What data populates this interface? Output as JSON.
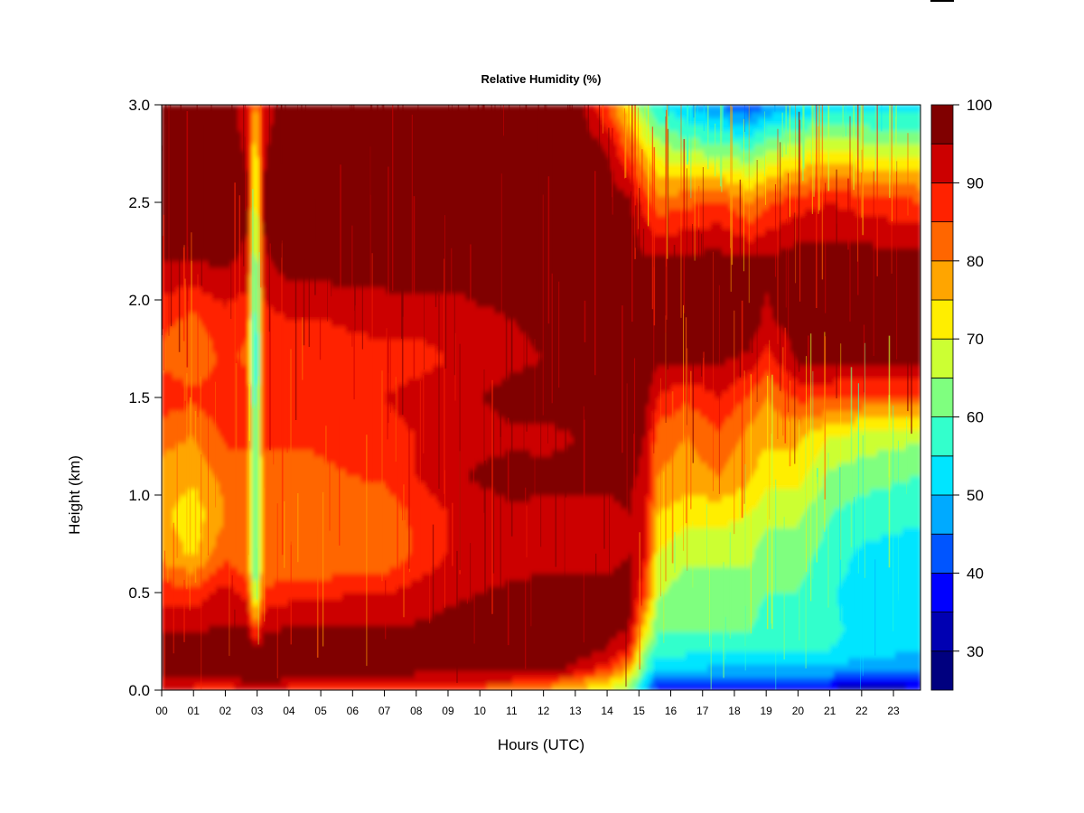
{
  "chart_data": {
    "type": "heatmap",
    "title": "Relative Humidity (%)",
    "xlabel": "Hours (UTC)",
    "ylabel": "Height (km)",
    "x_tick_labels": [
      "00",
      "01",
      "02",
      "03",
      "04",
      "05",
      "06",
      "07",
      "08",
      "09",
      "10",
      "11",
      "12",
      "13",
      "14",
      "15",
      "16",
      "17",
      "18",
      "19",
      "20",
      "21",
      "22",
      "23"
    ],
    "y_tick_labels": [
      "0.0",
      "0.5",
      "1.0",
      "1.5",
      "2.0",
      "2.5",
      "3.0"
    ],
    "xlim": [
      0,
      23.85
    ],
    "ylim": [
      0,
      3.0
    ],
    "x_unit": "hours UTC",
    "y_unit": "km",
    "colorbar": {
      "label_ticks": [
        "30",
        "40",
        "50",
        "60",
        "70",
        "80",
        "90",
        "100"
      ],
      "tick_values": [
        30,
        40,
        50,
        60,
        70,
        80,
        90,
        100
      ],
      "range": [
        25,
        100
      ],
      "bin_width": 5,
      "colors": [
        "#00007f",
        "#0000b2",
        "#0000ff",
        "#0055ff",
        "#00aaff",
        "#00e5ff",
        "#33ffcc",
        "#7fff7f",
        "#ccff33",
        "#ffee00",
        "#ffa500",
        "#ff6600",
        "#ff2200",
        "#cc0000",
        "#800000"
      ]
    },
    "heights_km": [
      0.0,
      0.05,
      0.1,
      0.2,
      0.3,
      0.5,
      0.7,
      0.9,
      1.1,
      1.3,
      1.5,
      1.7,
      1.9,
      2.2,
      2.5,
      2.8,
      3.0
    ],
    "grid": [
      {
        "x": 0.0,
        "rh": [
          90,
          94,
          96,
          96,
          95,
          88,
          78,
          76,
          78,
          82,
          88,
          84,
          86,
          95,
          98,
          98,
          98
        ]
      },
      {
        "x": 1.0,
        "rh": [
          88,
          94,
          96,
          96,
          95,
          87,
          74,
          72,
          76,
          80,
          86,
          82,
          84,
          95,
          98,
          98,
          98
        ]
      },
      {
        "x": 2.0,
        "rh": [
          86,
          93,
          96,
          97,
          96,
          92,
          84,
          80,
          82,
          86,
          88,
          86,
          88,
          96,
          98,
          98,
          98
        ]
      },
      {
        "x": 2.7,
        "rh": [
          90,
          96,
          98,
          98,
          96,
          88,
          80,
          80,
          82,
          86,
          88,
          84,
          86,
          94,
          96,
          94,
          92
        ]
      },
      {
        "x": 2.95,
        "rh": [
          92,
          98,
          98,
          98,
          85,
          62,
          55,
          55,
          55,
          55,
          52,
          50,
          52,
          56,
          64,
          70,
          78
        ]
      },
      {
        "x": 3.2,
        "rh": [
          92,
          98,
          98,
          98,
          95,
          86,
          80,
          80,
          82,
          86,
          88,
          86,
          88,
          94,
          96,
          94,
          92
        ]
      },
      {
        "x": 4.0,
        "rh": [
          88,
          94,
          96,
          97,
          96,
          88,
          80,
          80,
          82,
          86,
          88,
          86,
          90,
          98,
          99,
          99,
          99
        ]
      },
      {
        "x": 5.0,
        "rh": [
          86,
          94,
          96,
          97,
          96,
          88,
          80,
          82,
          84,
          86,
          88,
          86,
          90,
          98,
          99,
          99,
          99
        ]
      },
      {
        "x": 6.0,
        "rh": [
          85,
          94,
          96,
          97,
          96,
          90,
          80,
          82,
          85,
          88,
          90,
          88,
          91,
          98,
          99,
          99,
          99
        ]
      },
      {
        "x": 7.0,
        "rh": [
          85,
          94,
          96,
          97,
          96,
          90,
          80,
          82,
          86,
          88,
          90,
          88,
          92,
          98,
          99,
          99,
          99
        ]
      },
      {
        "x": 8.0,
        "rh": [
          85,
          93,
          96,
          97,
          96,
          92,
          86,
          86,
          90,
          90,
          92,
          88,
          92,
          98,
          99,
          99,
          99
        ]
      },
      {
        "x": 9.0,
        "rh": [
          84,
          92,
          96,
          97,
          97,
          94,
          90,
          90,
          94,
          92,
          94,
          90,
          92,
          98,
          99,
          99,
          99
        ]
      },
      {
        "x": 10.0,
        "rh": [
          82,
          92,
          96,
          97,
          97,
          95,
          92,
          92,
          96,
          93,
          95,
          92,
          94,
          98,
          99,
          99,
          99
        ]
      },
      {
        "x": 11.0,
        "rh": [
          80,
          90,
          96,
          97,
          97,
          96,
          93,
          94,
          97,
          94,
          97,
          94,
          95,
          98,
          99,
          99,
          99
        ]
      },
      {
        "x": 12.0,
        "rh": [
          78,
          88,
          96,
          97,
          97,
          96,
          94,
          94,
          96,
          94,
          97,
          95,
          96,
          98,
          99,
          99,
          99
        ]
      },
      {
        "x": 13.0,
        "rh": [
          74,
          82,
          94,
          97,
          97,
          96,
          94,
          94,
          96,
          95,
          97,
          96,
          97,
          98,
          99,
          99,
          99
        ]
      },
      {
        "x": 14.0,
        "rh": [
          70,
          76,
          86,
          95,
          96,
          96,
          94,
          94,
          96,
          96,
          97,
          97,
          98,
          98,
          99,
          94,
          85
        ]
      },
      {
        "x": 14.7,
        "rh": [
          62,
          68,
          76,
          88,
          95,
          96,
          95,
          95,
          96,
          96,
          97,
          98,
          98,
          98,
          96,
          82,
          70
        ]
      },
      {
        "x": 15.2,
        "rh": [
          48,
          52,
          58,
          62,
          72,
          86,
          90,
          92,
          94,
          95,
          97,
          98,
          98,
          96,
          88,
          72,
          60
        ]
      },
      {
        "x": 15.6,
        "rh": [
          36,
          42,
          50,
          56,
          60,
          66,
          70,
          75,
          80,
          82,
          90,
          96,
          98,
          96,
          82,
          66,
          55
        ]
      },
      {
        "x": 16.5,
        "rh": [
          35,
          42,
          50,
          56,
          60,
          62,
          66,
          72,
          78,
          80,
          86,
          96,
          98,
          97,
          84,
          62,
          50
        ]
      },
      {
        "x": 17.5,
        "rh": [
          34,
          40,
          48,
          56,
          60,
          62,
          66,
          72,
          80,
          84,
          90,
          96,
          98,
          97,
          86,
          60,
          45
        ]
      },
      {
        "x": 18.5,
        "rh": [
          33,
          40,
          48,
          56,
          60,
          62,
          66,
          70,
          76,
          78,
          84,
          94,
          98,
          96,
          80,
          58,
          40
        ]
      },
      {
        "x": 19.0,
        "rh": [
          34,
          40,
          48,
          55,
          58,
          60,
          62,
          66,
          72,
          76,
          80,
          88,
          94,
          96,
          84,
          62,
          45
        ]
      },
      {
        "x": 20.0,
        "rh": [
          34,
          40,
          48,
          55,
          58,
          60,
          62,
          66,
          72,
          76,
          86,
          96,
          98,
          98,
          88,
          66,
          50
        ]
      },
      {
        "x": 21.0,
        "rh": [
          33,
          40,
          48,
          55,
          56,
          56,
          58,
          60,
          64,
          70,
          86,
          96,
          98,
          98,
          90,
          68,
          52
        ]
      },
      {
        "x": 22.0,
        "rh": [
          32,
          38,
          46,
          52,
          54,
          52,
          54,
          58,
          62,
          68,
          84,
          96,
          98,
          98,
          88,
          66,
          52
        ]
      },
      {
        "x": 23.85,
        "rh": [
          33,
          40,
          46,
          50,
          52,
          50,
          52,
          56,
          60,
          66,
          84,
          96,
          98,
          97,
          86,
          64,
          52
        ]
      }
    ]
  }
}
